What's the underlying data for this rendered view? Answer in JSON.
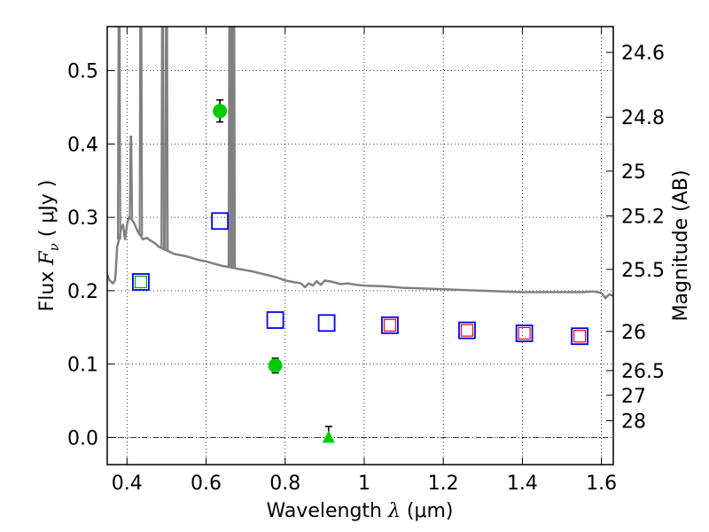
{
  "chart_data": {
    "type": "scatter",
    "xlabel": {
      "prefix": "Wavelength ",
      "symbol": "λ",
      "unit": "(μm)"
    },
    "ylabel": {
      "prefix": "Flux ",
      "symbol": "F",
      "sub": "ν",
      "unit": "( μJy )"
    },
    "y2label": "Magnitude (AB)",
    "xlim": [
      0.35,
      1.63
    ],
    "ylim": [
      -0.037,
      0.56
    ],
    "grid": true,
    "x_ticks": [
      {
        "value": 0.4,
        "label": "0.4"
      },
      {
        "value": 0.6,
        "label": "0.6"
      },
      {
        "value": 0.8,
        "label": "0.8"
      },
      {
        "value": 1.0,
        "label": "1"
      },
      {
        "value": 1.2,
        "label": "1.2"
      },
      {
        "value": 1.4,
        "label": "1.4"
      },
      {
        "value": 1.6,
        "label": "1.6"
      }
    ],
    "y_ticks": [
      {
        "value": 0.0,
        "label": "0.0"
      },
      {
        "value": 0.1,
        "label": "0.1"
      },
      {
        "value": 0.2,
        "label": "0.2"
      },
      {
        "value": 0.3,
        "label": "0.3"
      },
      {
        "value": 0.4,
        "label": "0.4"
      },
      {
        "value": 0.5,
        "label": "0.5"
      }
    ],
    "y2_ticks": [
      {
        "mag": 24.6,
        "label": "24.6"
      },
      {
        "mag": 24.8,
        "label": "24.8"
      },
      {
        "mag": 25.0,
        "label": "25"
      },
      {
        "mag": 25.2,
        "label": "25.2"
      },
      {
        "mag": 25.5,
        "label": "25.5"
      },
      {
        "mag": 26.0,
        "label": "26"
      },
      {
        "mag": 26.5,
        "label": "26.5"
      },
      {
        "mag": 27.0,
        "label": "27"
      },
      {
        "mag": 28.0,
        "label": "28"
      }
    ],
    "series": [
      {
        "marker": "line",
        "color": "#808080",
        "points": [
          [
            0.35,
            0.222
          ],
          [
            0.355,
            0.215
          ],
          [
            0.36,
            0.212
          ],
          [
            0.365,
            0.21
          ],
          [
            0.37,
            0.215
          ],
          [
            0.372,
            0.23
          ],
          [
            0.375,
            0.26
          ],
          [
            0.38,
            0.27
          ],
          [
            0.385,
            0.285
          ],
          [
            0.39,
            0.29
          ],
          [
            0.395,
            0.27
          ],
          [
            0.4,
            0.29
          ],
          [
            0.405,
            0.3
          ],
          [
            0.41,
            0.298
          ],
          [
            0.415,
            0.295
          ],
          [
            0.42,
            0.29
          ],
          [
            0.425,
            0.283
          ],
          [
            0.43,
            0.278
          ],
          [
            0.435,
            0.275
          ],
          [
            0.44,
            0.27
          ],
          [
            0.45,
            0.272
          ],
          [
            0.46,
            0.268
          ],
          [
            0.47,
            0.265
          ],
          [
            0.48,
            0.26
          ],
          [
            0.5,
            0.255
          ],
          [
            0.52,
            0.25
          ],
          [
            0.55,
            0.247
          ],
          [
            0.58,
            0.242
          ],
          [
            0.6,
            0.24
          ],
          [
            0.62,
            0.237
          ],
          [
            0.64,
            0.234
          ],
          [
            0.66,
            0.232
          ],
          [
            0.68,
            0.23
          ],
          [
            0.7,
            0.228
          ],
          [
            0.72,
            0.226
          ],
          [
            0.75,
            0.222
          ],
          [
            0.78,
            0.218
          ],
          [
            0.8,
            0.214
          ],
          [
            0.82,
            0.212
          ],
          [
            0.84,
            0.21
          ],
          [
            0.85,
            0.205
          ],
          [
            0.86,
            0.21
          ],
          [
            0.87,
            0.207
          ],
          [
            0.88,
            0.213
          ],
          [
            0.89,
            0.208
          ],
          [
            0.9,
            0.214
          ],
          [
            0.92,
            0.212
          ],
          [
            0.94,
            0.209
          ],
          [
            0.96,
            0.21
          ],
          [
            0.98,
            0.208
          ],
          [
            1.0,
            0.207
          ],
          [
            1.05,
            0.206
          ],
          [
            1.1,
            0.204
          ],
          [
            1.15,
            0.203
          ],
          [
            1.2,
            0.202
          ],
          [
            1.25,
            0.201
          ],
          [
            1.3,
            0.2
          ],
          [
            1.35,
            0.199
          ],
          [
            1.4,
            0.198
          ],
          [
            1.45,
            0.198
          ],
          [
            1.5,
            0.198
          ],
          [
            1.55,
            0.198
          ],
          [
            1.58,
            0.199
          ],
          [
            1.6,
            0.197
          ],
          [
            1.61,
            0.19
          ],
          [
            1.62,
            0.195
          ],
          [
            1.63,
            0.193
          ]
        ]
      },
      {
        "marker": "open-square",
        "color": "#0000ff",
        "points": [
          [
            0.435,
            0.212
          ],
          [
            0.635,
            0.295
          ],
          [
            0.775,
            0.16
          ],
          [
            0.905,
            0.156
          ],
          [
            1.065,
            0.153
          ],
          [
            1.26,
            0.146
          ],
          [
            1.405,
            0.142
          ],
          [
            1.545,
            0.138
          ]
        ]
      },
      {
        "marker": "open-square-small",
        "color": "#00aa00",
        "points": [
          [
            0.435,
            0.212
          ]
        ]
      },
      {
        "marker": "open-square-small",
        "color": "#ff0000",
        "points": [
          [
            1.065,
            0.153
          ],
          [
            1.26,
            0.146
          ],
          [
            1.405,
            0.142
          ],
          [
            1.545,
            0.138
          ]
        ]
      },
      {
        "marker": "filled-circle",
        "color": "#00cc00",
        "points": [
          [
            0.635,
            0.445,
            0.015
          ],
          [
            0.775,
            0.098,
            0.01
          ]
        ]
      },
      {
        "marker": "filled-triangle",
        "color": "#00cc00",
        "points": [
          [
            0.91,
            0.0,
            0.015
          ]
        ]
      }
    ],
    "emission_lines": [
      {
        "x": 0.38,
        "peak": 0.7
      },
      {
        "x": 0.41,
        "peak": 0.41
      },
      {
        "x": 0.435,
        "peak": 0.7
      },
      {
        "x": 0.49,
        "peak": 0.7
      },
      {
        "x": 0.5,
        "peak": 0.7
      },
      {
        "x": 0.66,
        "peak": 0.7
      },
      {
        "x": 0.665,
        "peak": 0.7
      },
      {
        "x": 0.67,
        "peak": 0.7
      }
    ]
  }
}
